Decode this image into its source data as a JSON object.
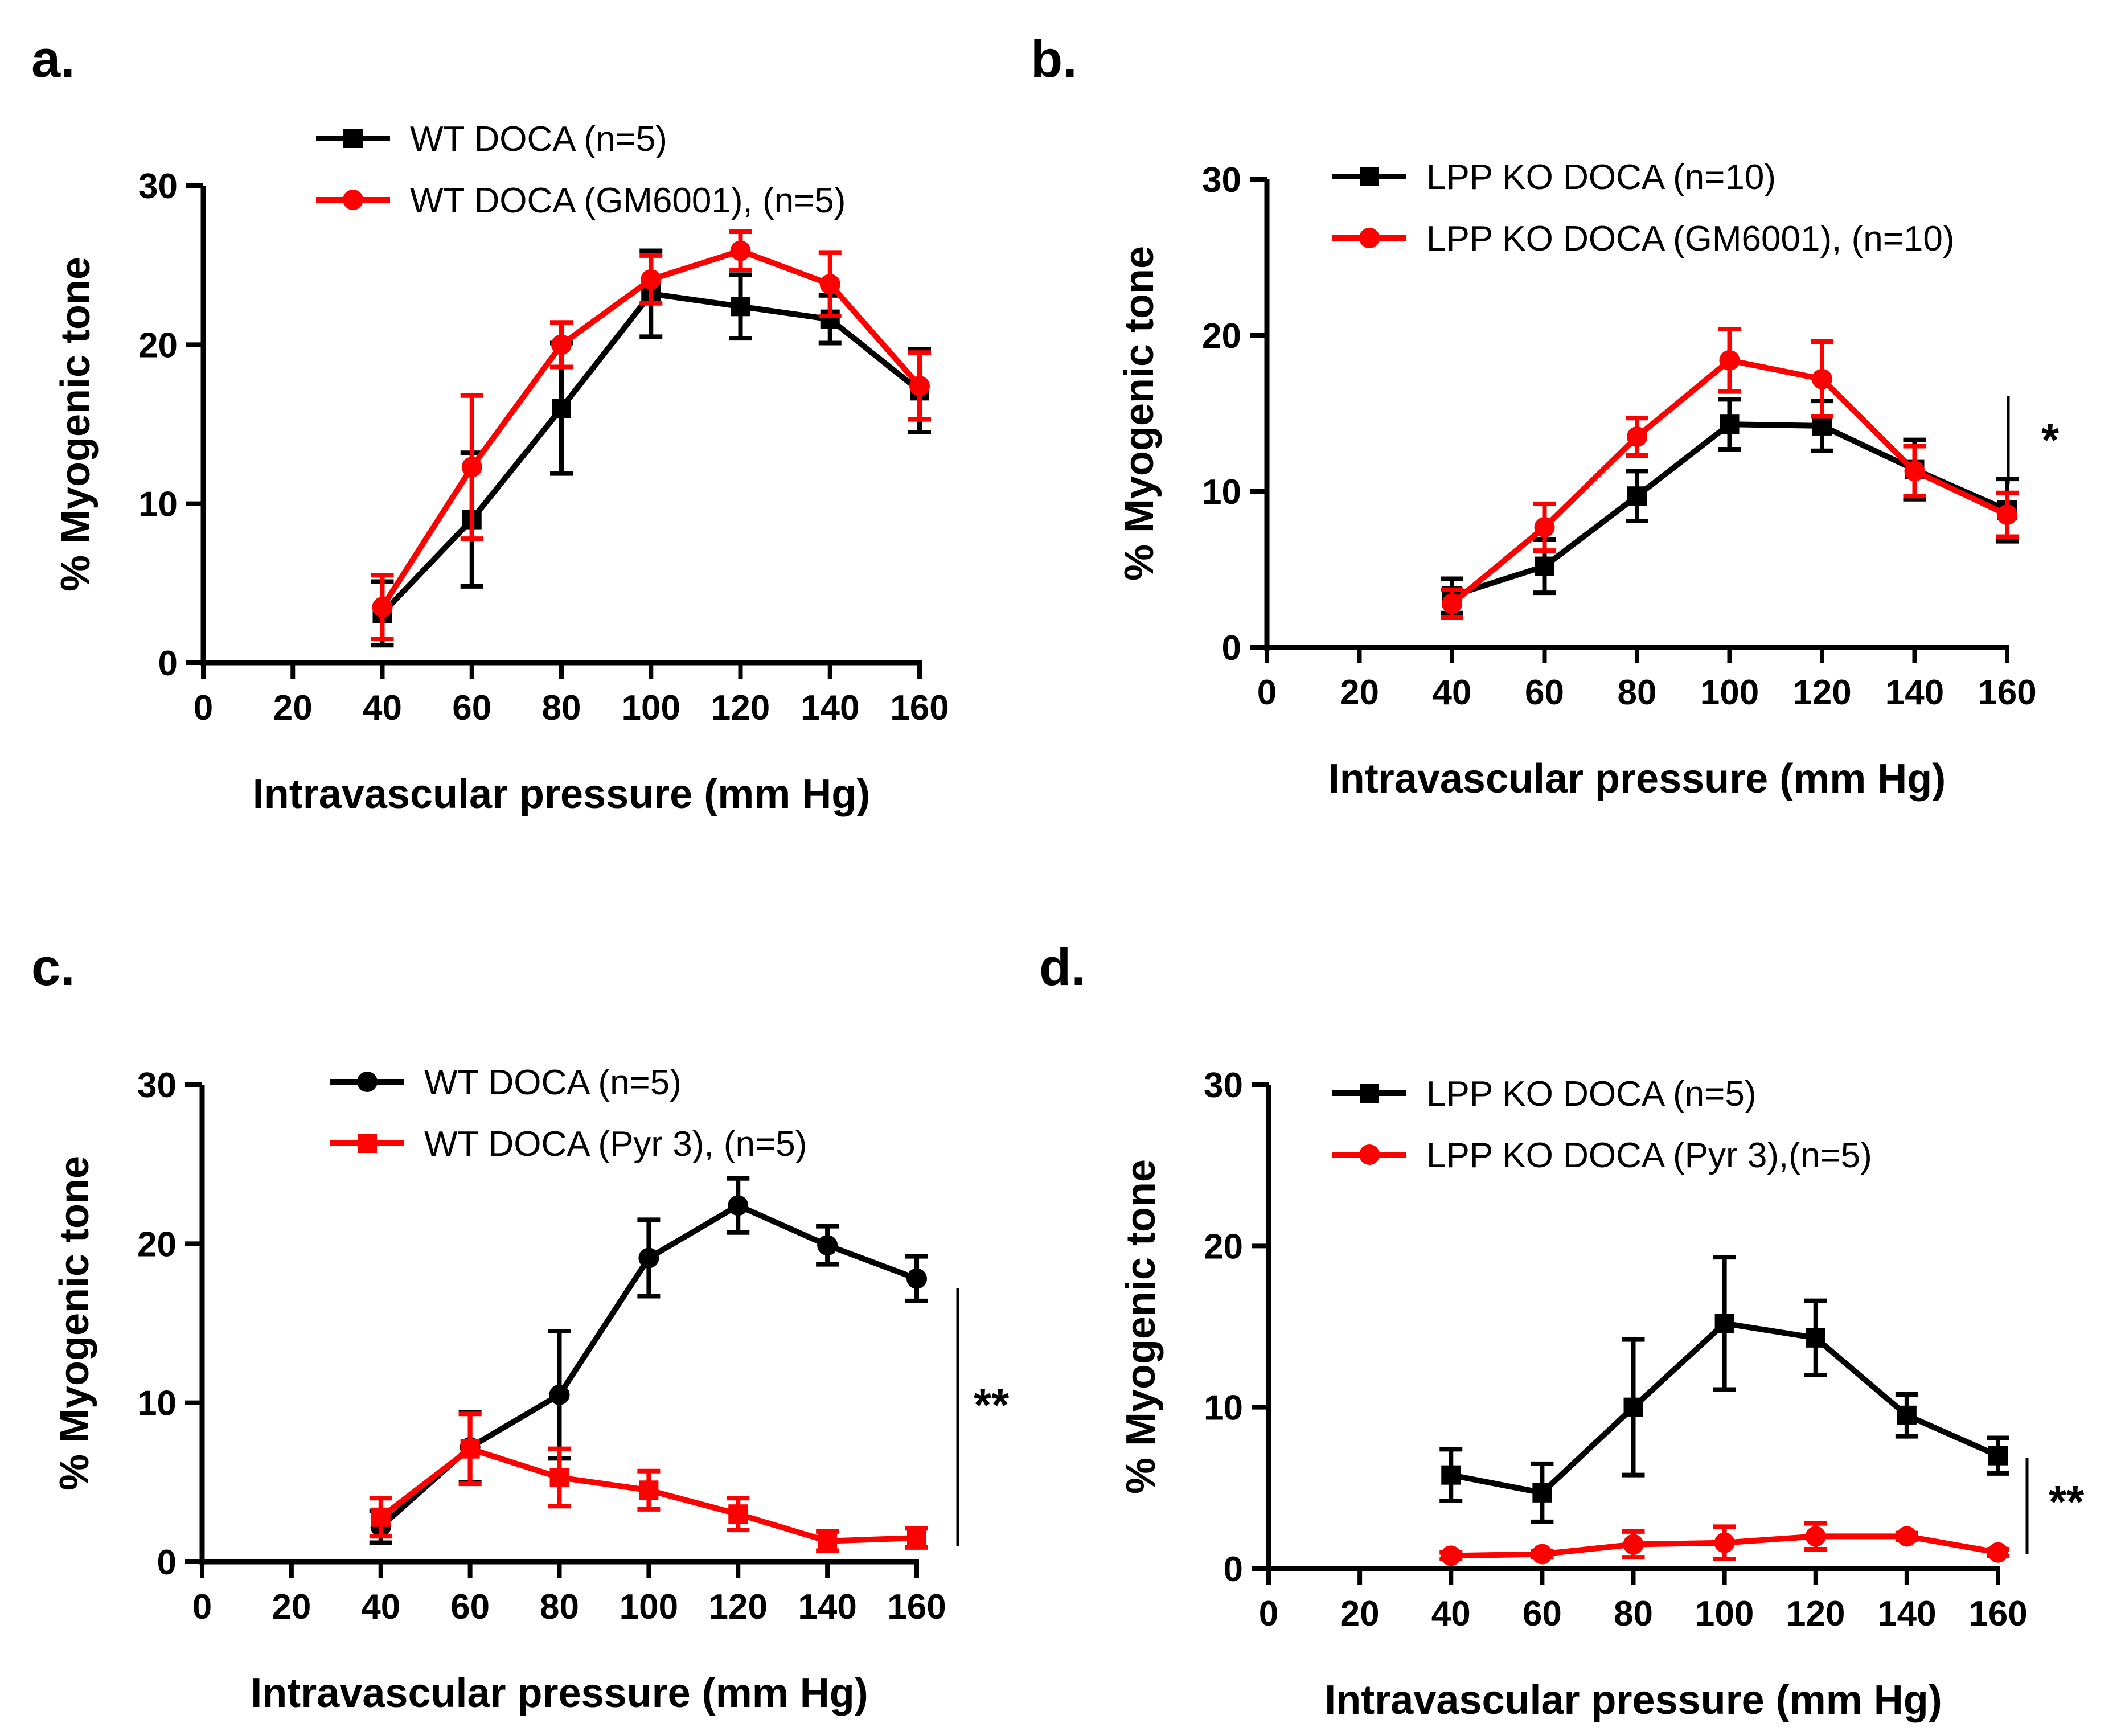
{
  "colors": {
    "black": "#000000",
    "red": "#FF0000"
  },
  "chart_data": [
    {
      "panel": "a.",
      "type": "line",
      "xlabel": "Intravascular pressure (mm Hg)",
      "ylabel": "% Myogenic tone",
      "xlim": [
        0,
        160
      ],
      "ylim": [
        0,
        30
      ],
      "xticks": [
        "0",
        "20",
        "40",
        "60",
        "80",
        "100",
        "120",
        "140",
        "160"
      ],
      "yticks": [
        "0",
        "10",
        "20",
        "30"
      ],
      "legend_position": "top",
      "significance": "",
      "series": [
        {
          "name": "WT  DOCA (n=5)",
          "color": "#000000",
          "marker": "square",
          "x": [
            40,
            60,
            80,
            100,
            120,
            140,
            160
          ],
          "y": [
            3.1,
            9.0,
            16.0,
            23.2,
            22.4,
            21.6,
            17.1
          ],
          "err": [
            2.0,
            4.2,
            4.1,
            2.7,
            2.0,
            1.5,
            2.6
          ]
        },
        {
          "name": "WT  DOCA (GM6001), (n=5)",
          "color": "#FF0000",
          "marker": "circle",
          "x": [
            40,
            60,
            80,
            100,
            120,
            140,
            160
          ],
          "y": [
            3.5,
            12.3,
            20.0,
            24.1,
            25.9,
            23.8,
            17.4
          ],
          "err": [
            2.0,
            4.5,
            1.4,
            1.5,
            1.2,
            2.0,
            2.1
          ]
        }
      ]
    },
    {
      "panel": "b.",
      "type": "line",
      "xlabel": "Intravascular pressure (mm Hg)",
      "ylabel": "% Myogenic tone",
      "xlim": [
        0,
        160
      ],
      "ylim": [
        0,
        30
      ],
      "xticks": [
        "0",
        "20",
        "40",
        "60",
        "80",
        "100",
        "120",
        "140",
        "160"
      ],
      "yticks": [
        "0",
        "10",
        "20",
        "30"
      ],
      "legend_position": "top",
      "significance": "*",
      "series": [
        {
          "name": "LPP KO DOCA (n=10)",
          "color": "#000000",
          "marker": "square",
          "x": [
            40,
            60,
            80,
            100,
            120,
            140,
            160
          ],
          "y": [
            3.3,
            5.2,
            9.7,
            14.3,
            14.2,
            11.4,
            8.8
          ],
          "err": [
            1.1,
            1.7,
            1.6,
            1.6,
            1.6,
            1.9,
            2.0
          ]
        },
        {
          "name": "LPP KO DOCA (GM6001), (n=10)",
          "color": "#FF0000",
          "marker": "circle",
          "x": [
            40,
            60,
            80,
            100,
            120,
            140,
            160
          ],
          "y": [
            2.8,
            7.7,
            13.5,
            18.4,
            17.2,
            11.3,
            8.5
          ],
          "err": [
            0.9,
            1.5,
            1.2,
            2.0,
            2.4,
            1.6,
            1.4
          ]
        }
      ]
    },
    {
      "panel": "c.",
      "type": "line",
      "xlabel": "Intravascular pressure (mm Hg)",
      "ylabel": "% Myogenic tone",
      "xlim": [
        0,
        160
      ],
      "ylim": [
        0,
        30
      ],
      "xticks": [
        "0",
        "20",
        "40",
        "60",
        "80",
        "100",
        "120",
        "140",
        "160"
      ],
      "yticks": [
        "0",
        "10",
        "20",
        "30"
      ],
      "legend_position": "top",
      "significance": "**",
      "series": [
        {
          "name": "WT DOCA  (n=5)",
          "color": "#000000",
          "marker": "circle",
          "x": [
            40,
            60,
            80,
            100,
            120,
            140,
            160
          ],
          "y": [
            2.2,
            7.2,
            10.5,
            19.1,
            22.4,
            19.9,
            17.8
          ],
          "err": [
            1.0,
            2.2,
            4.0,
            2.4,
            1.7,
            1.2,
            1.4
          ]
        },
        {
          "name": "WT DOCA (Pyr 3), (n=5)",
          "color": "#FF0000",
          "marker": "square",
          "x": [
            40,
            60,
            80,
            100,
            120,
            140,
            160
          ],
          "y": [
            2.8,
            7.1,
            5.3,
            4.5,
            3.0,
            1.3,
            1.5
          ],
          "err": [
            1.2,
            2.2,
            1.8,
            1.2,
            1.0,
            0.6,
            0.6
          ]
        }
      ]
    },
    {
      "panel": "d.",
      "type": "line",
      "xlabel": "Intravascular pressure (mm Hg)",
      "ylabel": "% Myogenic tone",
      "xlim": [
        0,
        160
      ],
      "ylim": [
        0,
        30
      ],
      "xticks": [
        "0",
        "20",
        "40",
        "60",
        "80",
        "100",
        "120",
        "140",
        "160"
      ],
      "yticks": [
        "0",
        "10",
        "20",
        "30"
      ],
      "legend_position": "top",
      "significance": "**",
      "series": [
        {
          "name": "LPP KO DOCA (n=5)",
          "color": "#000000",
          "marker": "square",
          "x": [
            40,
            60,
            80,
            100,
            120,
            140,
            160
          ],
          "y": [
            5.8,
            4.7,
            10.0,
            15.2,
            14.3,
            9.5,
            7.0
          ],
          "err": [
            1.6,
            1.8,
            4.2,
            4.1,
            2.3,
            1.3,
            1.1
          ]
        },
        {
          "name": "LPP KO DOCA (Pyr 3),(n=5)",
          "color": "#FF0000",
          "marker": "circle",
          "x": [
            40,
            60,
            80,
            100,
            120,
            140,
            160
          ],
          "y": [
            0.8,
            0.9,
            1.5,
            1.6,
            2.0,
            2.0,
            1.0
          ],
          "err": [
            0.2,
            0.2,
            0.8,
            1.0,
            0.8,
            0.2,
            0.2
          ]
        }
      ]
    }
  ]
}
